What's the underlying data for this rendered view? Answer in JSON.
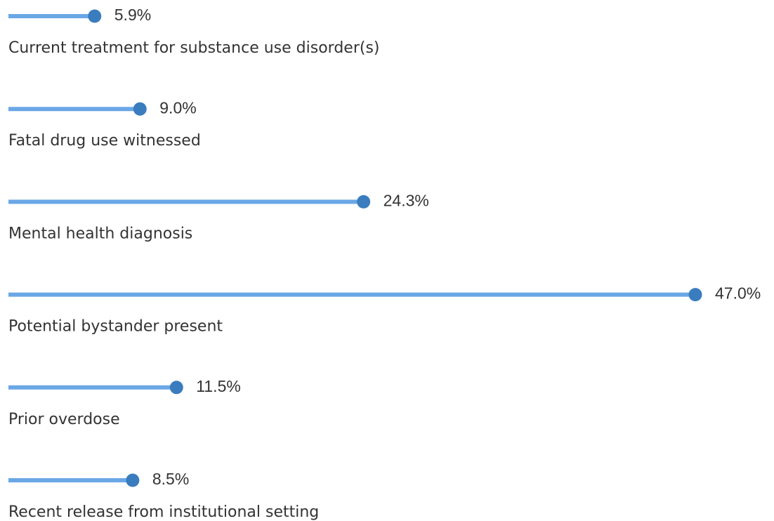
{
  "chart_data": {
    "type": "lollipop",
    "categories": [
      "Current treatment for substance use disorder(s)",
      "Fatal drug use witnessed",
      "Mental health diagnosis",
      "Potential bystander present",
      "Prior overdose",
      "Recent release from institutional setting"
    ],
    "values": [
      5.9,
      9.0,
      24.3,
      47.0,
      11.5,
      8.5
    ],
    "value_labels": [
      "5.9%",
      "9.0%",
      "24.3%",
      "47.0%",
      "11.5%",
      "8.5%"
    ],
    "color": "#6aa7e6",
    "dot_color": "#3a7dbf"
  }
}
